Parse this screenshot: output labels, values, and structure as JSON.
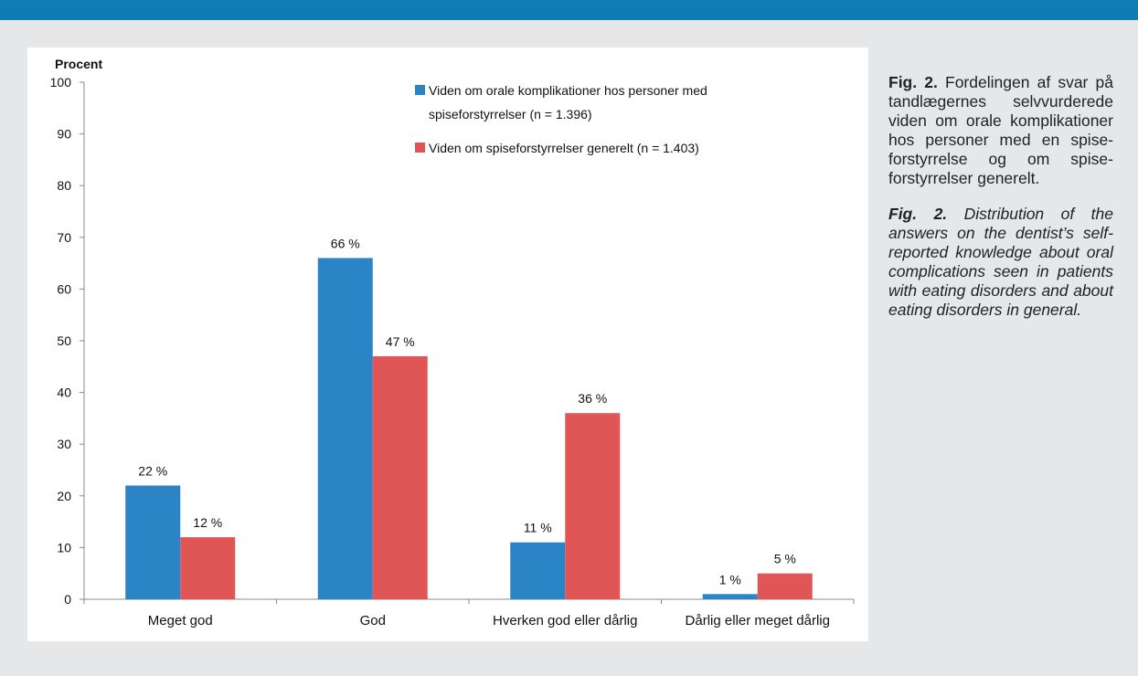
{
  "caption": {
    "da_label": "Fig. 2.",
    "da_text": " Fordelingen af svar på tandlægernes selvvurderede viden om orale komplikationer hos personer med en spise­forstyrrelse og om spise­forstyrrelser generelt.",
    "en_label": "Fig. 2.",
    "en_text": " Distribution of the answers on the dentist’s self-reported knowledge about oral complications seen in patients with eat­ing disorders and about eating disorders in gen­eral."
  },
  "colors": {
    "series1": "#2a84c6",
    "series2": "#e05555",
    "top_bar": "#0e7db3",
    "background": "#e6e7e9"
  },
  "chart_data": {
    "type": "bar",
    "ylabel": "Procent",
    "xlabel": "",
    "ylim": [
      0,
      100
    ],
    "yticks": [
      0,
      10,
      20,
      30,
      40,
      50,
      60,
      70,
      80,
      90,
      100
    ],
    "grid": false,
    "legend_position": "top-right",
    "categories": [
      "Meget god",
      "God",
      "Hverken god eller dårlig",
      "Dårlig eller meget dårlig"
    ],
    "series": [
      {
        "name": "Viden om orale komplikationer hos personer med spiseforstyrrelser (n = 1.396)",
        "legend_lines": [
          "Viden om orale komplikationer hos personer med",
          "spiseforstyrrelser (n = 1.396)"
        ],
        "values": [
          22,
          66,
          11,
          1
        ],
        "labels": [
          "22 %",
          "66 %",
          "11 %",
          "1 %"
        ]
      },
      {
        "name": "Viden om spiseforstyrrelser generelt (n = 1.403)",
        "legend_lines": [
          "Viden om spiseforstyrrelser generelt (n = 1.403)"
        ],
        "values": [
          12,
          47,
          36,
          5
        ],
        "labels": [
          "12 %",
          "47 %",
          "36 %",
          "5 %"
        ]
      }
    ]
  }
}
